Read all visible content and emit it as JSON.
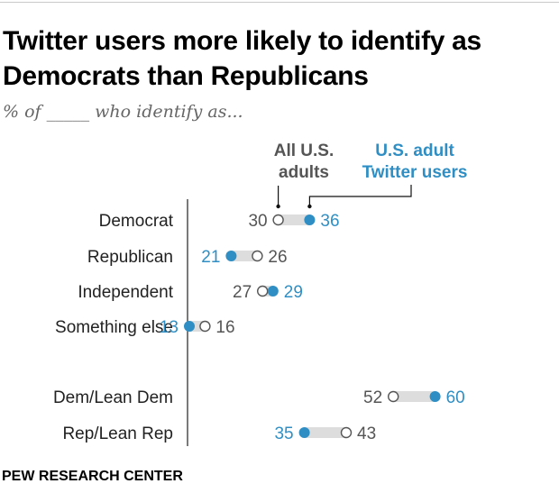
{
  "title": "Twitter users more likely to identify as Democrats than Republicans",
  "subtitle": "% of _____ who identify as...",
  "source": "PEW RESEARCH CENTER",
  "colors": {
    "us_adults": "#ffffff",
    "twitter_users": "#2f8fc4",
    "connector": "#dddddd",
    "gray_text": "#555555"
  },
  "chart_data": {
    "type": "dot",
    "title": "Twitter users more likely to identify as Democrats than Republicans",
    "categories": [
      "Democrat",
      "Republican",
      "Independent",
      "Something else",
      "Dem/Lean Dem",
      "Rep/Lean Rep"
    ],
    "series": [
      {
        "name": "All U.S. adults",
        "values": [
          30,
          26,
          27,
          16,
          52,
          43
        ]
      },
      {
        "name": "U.S. adult Twitter users",
        "values": [
          36,
          21,
          29,
          13,
          60,
          35
        ]
      }
    ],
    "legend": [
      {
        "lines": [
          "All U.S.",
          "adults"
        ]
      },
      {
        "lines": [
          "U.S. adult",
          "Twitter users"
        ]
      }
    ]
  }
}
